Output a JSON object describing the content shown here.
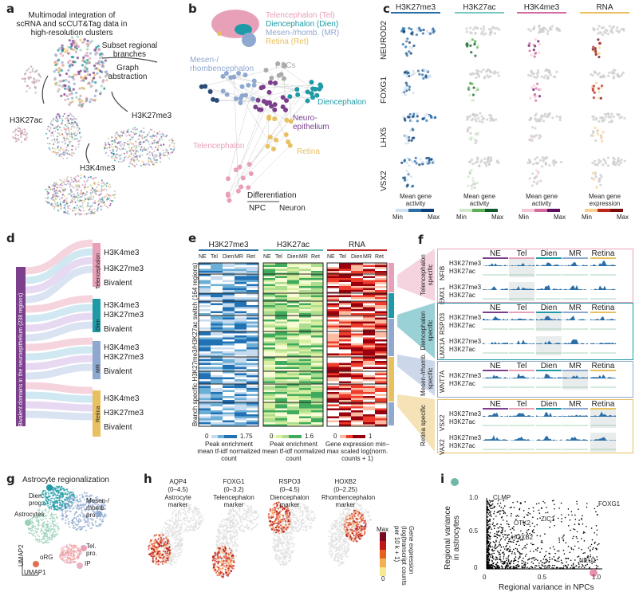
{
  "colors": {
    "tel": "#e8a0b8",
    "dien": "#1e9aa6",
    "mr": "#8fa8d0",
    "ret": "#e8c060",
    "ne": "#7b3f8c",
    "h3k27me3": "#2a6fa8",
    "h3k27ac": "#5fae5a",
    "h3k4me3": "#d46aa0",
    "rna": "#c0241c"
  },
  "a": {
    "label": "a",
    "title": "Multimodal integration of scRNA and scCUT&Tag data in high-resolution clusters",
    "arrow1": "Subset regional branches",
    "arrow2": "Graph abstraction",
    "mod1": "H3K27ac",
    "mod2": "H3K27me3",
    "mod3": "H3K4me3"
  },
  "b": {
    "label": "b",
    "legend": [
      "Telencephalon (Tel)",
      "Diencephalon (Dien)",
      "Mesen-/rhomb. (MR)",
      "Retina (Ret)"
    ],
    "mesen": "Mesen-/ rhombencephalon",
    "pscs": "PSCs",
    "dien": "Diencephalon",
    "ne": "Neuro- epithelium",
    "retina": "Retina",
    "tel": "Telencephalon",
    "diff": "Differentiation",
    "npc": "NPC",
    "neuron": "Neuron"
  },
  "c": {
    "label": "c",
    "columns": [
      "H3K27me3",
      "H3K27ac",
      "H3K4me3",
      "RNA"
    ],
    "rows": [
      "NEUROD2",
      "FOXG1",
      "LHX5",
      "VSX2"
    ],
    "bars": [
      "Mean gene activity",
      "Mean gene activity",
      "Mean gene activity",
      "Mean gene expression"
    ],
    "min": "Min",
    "max": "Max"
  },
  "d": {
    "label": "d",
    "ylabel": "Bivalent domains in the neuroepithelium (238 regions)",
    "groups": [
      {
        "name": "Telencephalon",
        "rows": [
          "H3K4me3",
          "H3K27me3",
          "Bivalent"
        ]
      },
      {
        "name": "Dien",
        "rows": [
          "H3K4me3",
          "H3K27me3",
          "Bivalent"
        ]
      },
      {
        "name": "MR",
        "rows": [
          "H3K4me3",
          "H3K27me3",
          "Bivalent"
        ]
      },
      {
        "name": "Retina",
        "rows": [
          "H3K4me3",
          "H3K27me3",
          "Bivalent"
        ]
      }
    ]
  },
  "e": {
    "label": "e",
    "ylabel": "Branch specific H3K27me3/H3K27ac switch (164 regions)",
    "columns": [
      "H3K27me3",
      "H3K27ac",
      "RNA"
    ],
    "sub": [
      "NE",
      "Tel",
      "Dien",
      "MR",
      "Ret"
    ],
    "bars": [
      {
        "min": "0",
        "max": "1.75",
        "caption": "Peak enrichment mean tf-idf normalized count"
      },
      {
        "min": "0",
        "max": "1.6",
        "caption": "Peak enrichment mean tf-idf normalized count"
      },
      {
        "min": "0",
        "max": "1",
        "caption": "Gene expression min–max scaled log(norm. counts + 1)"
      }
    ]
  },
  "f": {
    "label": "f",
    "regions": [
      "NE",
      "Tel",
      "Dien",
      "MR",
      "Retina"
    ],
    "tracks": [
      "H3K27me3",
      "H3K27ac"
    ],
    "sections": [
      {
        "name": "Telencephalon specific",
        "genes": [
          "NFIB",
          "EMX1"
        ]
      },
      {
        "name": "Diencephalon specific",
        "genes": [
          "RSPO3",
          "LMX1A"
        ]
      },
      {
        "name": "Mesen-/rhomb. specific",
        "genes": [
          "WNT7A"
        ]
      },
      {
        "name": "Retina specific",
        "genes": [
          "VSX2",
          "VAX2"
        ]
      }
    ]
  },
  "g": {
    "label": "g",
    "title": "Astrocyte regionalization",
    "dien": "Dien. prog.",
    "mesen": "Mesen-/ rhomb. pro.",
    "astro": "Astrocytes",
    "tel": "Tel. pro.",
    "org": "oRG",
    "ip": "IP",
    "umap1": "UMAP1",
    "umap2": "UMAP2"
  },
  "h": {
    "label": "h",
    "markers": [
      {
        "gene": "AQP4",
        "range": "(0–4.5)",
        "desc": "Astrocyte marker"
      },
      {
        "gene": "FOXG1",
        "range": "(0–3.2)",
        "desc": "Telencephalon marker"
      },
      {
        "gene": "RSPO3",
        "range": "(0–4.5)",
        "desc": "Diencephalon marker"
      },
      {
        "gene": "HOXB2",
        "range": "(0–2.25)",
        "desc": "Rhombencephalon marker"
      }
    ],
    "bar_max": "Max",
    "bar_min": "0",
    "bar_label": "Gene expression (log(transcript counts per 10 k + 1)"
  },
  "i": {
    "label": "i",
    "xlabel": "Regional variance in NPCs",
    "ylabel": "Regional variance in astrocytes",
    "xticks": [
      "0",
      "0.5",
      "1.0"
    ],
    "yticks": [
      "0",
      "0.5",
      "1.0"
    ],
    "genes": [
      "CLMP",
      "FOXG1",
      "ZIC1",
      "OTX2",
      "HOXB2",
      "NEU1"
    ]
  }
}
